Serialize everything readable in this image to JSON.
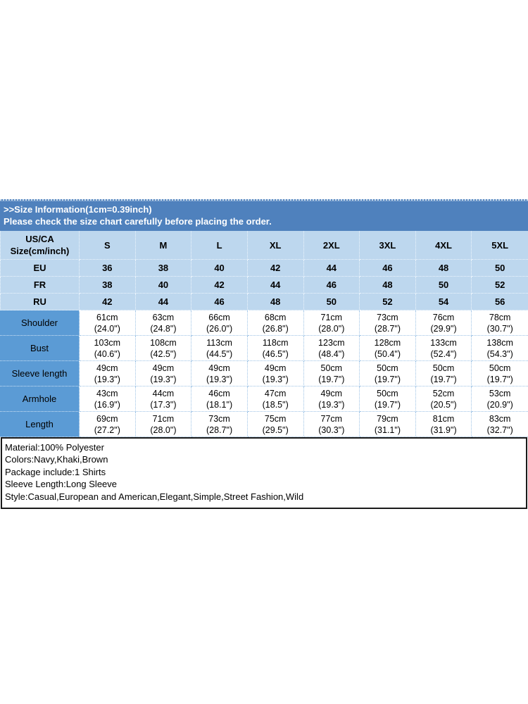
{
  "banner": {
    "title": ">>Size Information(1cm=0.39inch)",
    "subtitle": "Please check the size chart carefully before placing the order."
  },
  "size_table": {
    "corner_header_line1": "US/CA",
    "corner_header_line2": "Size(cm/inch)",
    "size_columns": [
      "S",
      "M",
      "L",
      "XL",
      "2XL",
      "3XL",
      "4XL",
      "5XL"
    ],
    "region_rows": [
      {
        "label": "EU",
        "values": [
          "36",
          "38",
          "40",
          "42",
          "44",
          "46",
          "48",
          "50"
        ]
      },
      {
        "label": "FR",
        "values": [
          "38",
          "40",
          "42",
          "44",
          "46",
          "48",
          "50",
          "52"
        ]
      },
      {
        "label": "RU",
        "values": [
          "42",
          "44",
          "46",
          "48",
          "50",
          "52",
          "54",
          "56"
        ]
      }
    ],
    "measurement_rows": [
      {
        "label": "Shoulder",
        "cm": [
          "61cm",
          "63cm",
          "66cm",
          "68cm",
          "71cm",
          "73cm",
          "76cm",
          "78cm"
        ],
        "inch": [
          "(24.0\")",
          "(24.8\")",
          "(26.0\")",
          "(26.8\")",
          "(28.0\")",
          "(28.7\")",
          "(29.9\")",
          "(30.7\")"
        ]
      },
      {
        "label": "Bust",
        "cm": [
          "103cm",
          "108cm",
          "113cm",
          "118cm",
          "123cm",
          "128cm",
          "133cm",
          "138cm"
        ],
        "inch": [
          "(40.6\")",
          "(42.5\")",
          "(44.5\")",
          "(46.5\")",
          "(48.4\")",
          "(50.4\")",
          "(52.4\")",
          "(54.3\")"
        ]
      },
      {
        "label": "Sleeve length",
        "cm": [
          "49cm",
          "49cm",
          "49cm",
          "49cm",
          "50cm",
          "50cm",
          "50cm",
          "50cm"
        ],
        "inch": [
          "(19.3\")",
          "(19.3\")",
          "(19.3\")",
          "(19.3\")",
          "(19.7\")",
          "(19.7\")",
          "(19.7\")",
          "(19.7\")"
        ]
      },
      {
        "label": "Armhole",
        "cm": [
          "43cm",
          "44cm",
          "46cm",
          "47cm",
          "49cm",
          "50cm",
          "52cm",
          "53cm"
        ],
        "inch": [
          "(16.9\")",
          "(17.3\")",
          "(18.1\")",
          "(18.5\")",
          "(19.3\")",
          "(19.7\")",
          "(20.5\")",
          "(20.9\")"
        ]
      },
      {
        "label": "Length",
        "cm": [
          "69cm",
          "71cm",
          "73cm",
          "75cm",
          "77cm",
          "79cm",
          "81cm",
          "83cm"
        ],
        "inch": [
          "(27.2\")",
          "(28.0\")",
          "(28.7\")",
          "(29.5\")",
          "(30.3\")",
          "(31.1\")",
          "(31.9\")",
          "(32.7\")"
        ]
      }
    ]
  },
  "product_details": {
    "lines": [
      "Material:100% Polyester",
      "Colors:Navy,Khaki,Brown",
      "Package include:1 Shirts",
      "Sleeve Length:Long Sleeve",
      "Style:Casual,European and American,Elegant,Simple,Street Fashion,Wild"
    ]
  },
  "colors": {
    "banner_bg": "#4F81BD",
    "header_cell_bg": "#BDD7EE",
    "measure_label_bg": "#5B9BD5",
    "grid_dotted": "#9CC2E5",
    "details_border": "#1A1A1A",
    "banner_text": "#FFFFFF",
    "body_text": "#000000"
  }
}
